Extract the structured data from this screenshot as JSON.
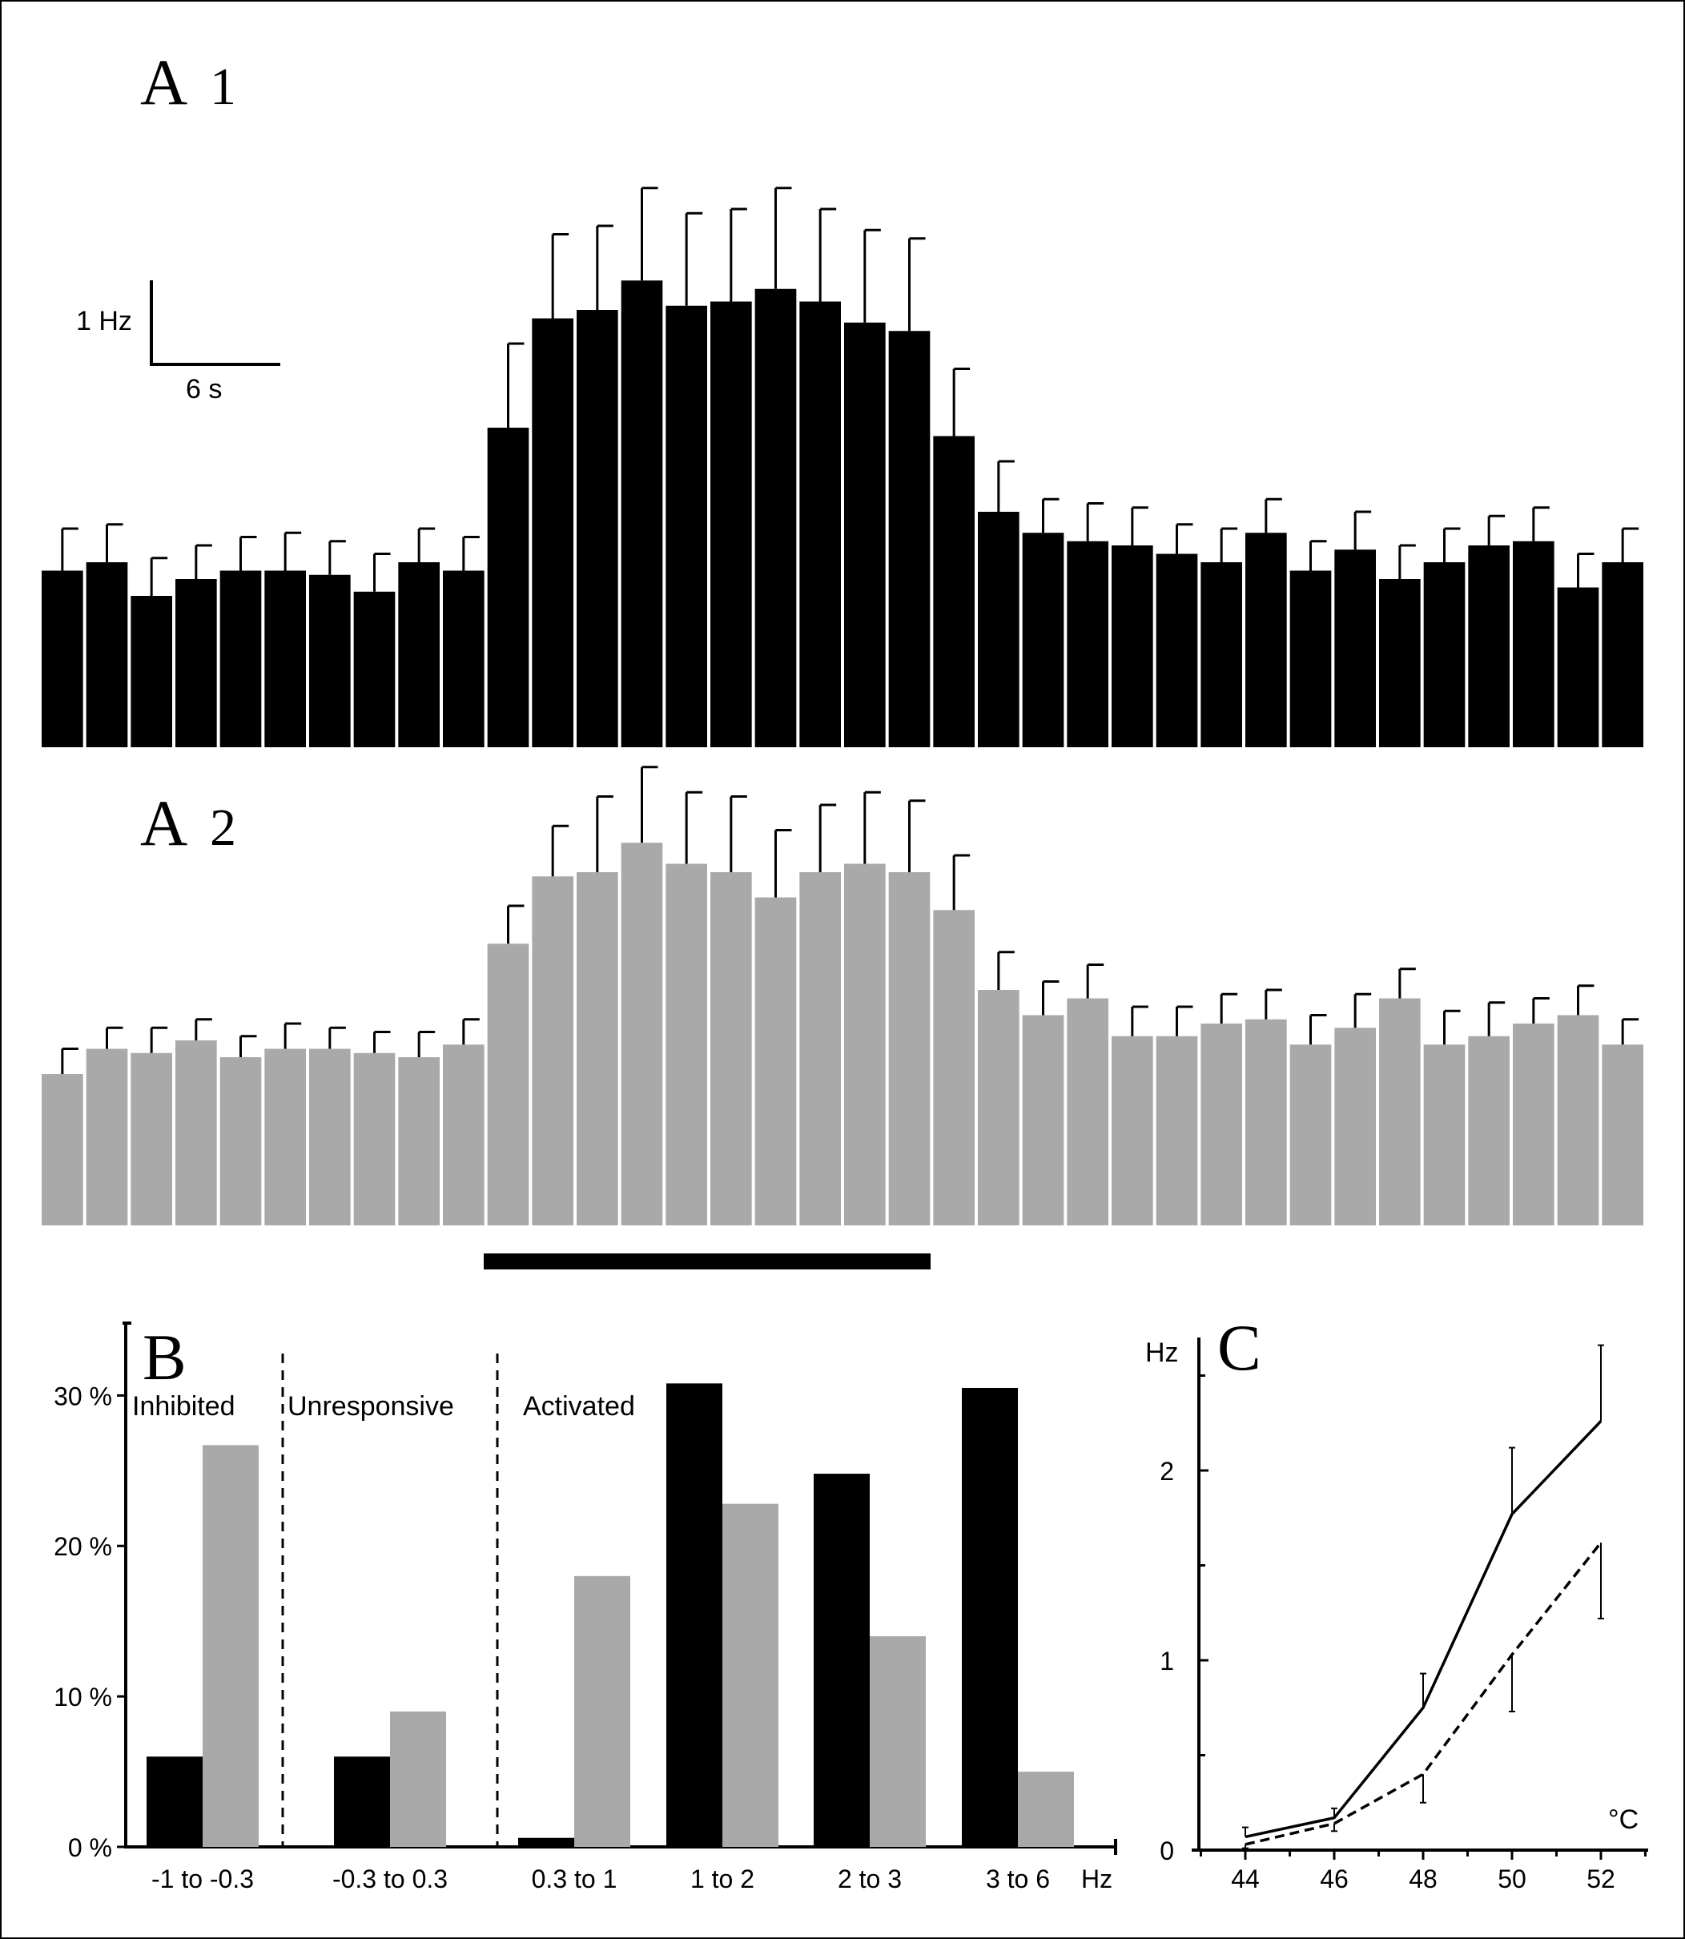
{
  "panels": {
    "a1": {
      "label": "A",
      "sub": "1"
    },
    "a2": {
      "label": "A",
      "sub": "2"
    },
    "b": {
      "label": "B"
    },
    "c": {
      "label": "C"
    }
  },
  "scale_bar": {
    "y_label": "1 Hz",
    "x_label": "6 s"
  },
  "colors": {
    "black": "#000000",
    "gray": "#a9a9a9"
  },
  "chart_data": [
    {
      "type": "bar",
      "panel": "A1",
      "bins": 36,
      "stimulus_bins": [
        10,
        19
      ],
      "values": [
        2.1,
        2.2,
        1.8,
        2.0,
        2.1,
        2.1,
        2.05,
        1.85,
        2.2,
        2.1,
        3.8,
        5.1,
        5.2,
        5.55,
        5.25,
        5.3,
        5.45,
        5.3,
        5.05,
        4.95,
        3.7,
        2.8,
        2.55,
        2.45,
        2.4,
        2.3,
        2.2,
        2.55,
        2.1,
        2.35,
        2.0,
        2.2,
        2.4,
        2.45,
        1.9,
        2.2
      ],
      "errors": [
        0.5,
        0.45,
        0.45,
        0.4,
        0.4,
        0.45,
        0.4,
        0.45,
        0.4,
        0.4,
        1.0,
        1.0,
        1.0,
        1.1,
        1.1,
        1.1,
        1.2,
        1.1,
        1.1,
        1.1,
        0.8,
        0.6,
        0.4,
        0.45,
        0.45,
        0.35,
        0.4,
        0.4,
        0.35,
        0.45,
        0.4,
        0.4,
        0.35,
        0.4,
        0.4,
        0.4
      ]
    },
    {
      "type": "bar",
      "panel": "A2",
      "bins": 36,
      "values": [
        1.8,
        2.1,
        2.05,
        2.2,
        2.0,
        2.1,
        2.1,
        2.05,
        2.0,
        2.15,
        3.35,
        4.15,
        4.2,
        4.55,
        4.3,
        4.2,
        3.9,
        4.2,
        4.3,
        4.2,
        3.75,
        2.8,
        2.5,
        2.7,
        2.25,
        2.25,
        2.4,
        2.45,
        2.15,
        2.35,
        2.7,
        2.15,
        2.25,
        2.4,
        2.5,
        2.15
      ],
      "errors": [
        0.3,
        0.25,
        0.3,
        0.25,
        0.25,
        0.3,
        0.25,
        0.25,
        0.3,
        0.3,
        0.45,
        0.6,
        0.9,
        0.9,
        0.85,
        0.9,
        0.8,
        0.8,
        0.85,
        0.85,
        0.65,
        0.45,
        0.4,
        0.4,
        0.35,
        0.35,
        0.35,
        0.35,
        0.35,
        0.4,
        0.35,
        0.4,
        0.4,
        0.3,
        0.35,
        0.3
      ]
    },
    {
      "type": "bar",
      "panel": "B",
      "categories": [
        "-1 to -0.3",
        "-0.3 to 0.3",
        "0.3 to 1",
        "1 to 2",
        "2 to 3",
        "3 to 6"
      ],
      "x_unit": "Hz",
      "y_ticks": [
        "0 %",
        "10 %",
        "20 %",
        "30 %"
      ],
      "ylim": [
        0,
        33
      ],
      "groups": [
        "Inhibited",
        "Unresponsive",
        "Activated"
      ],
      "series": [
        {
          "color": "#000000",
          "values": [
            6,
            6,
            0.6,
            30.8,
            24.8,
            30.5
          ]
        },
        {
          "color": "#a9a9a9",
          "values": [
            26.7,
            9,
            18,
            22.8,
            14,
            5
          ]
        }
      ]
    },
    {
      "type": "line",
      "panel": "C",
      "ylabel": "Hz",
      "xlabel": "°C",
      "x": [
        44,
        46,
        48,
        50,
        52
      ],
      "x_ticks": [
        "44",
        "46",
        "48",
        "50",
        "52"
      ],
      "y_ticks": [
        "0",
        "1",
        "2"
      ],
      "ylim": [
        0,
        2.6
      ],
      "series": [
        {
          "style": "solid",
          "values": [
            0.07,
            0.17,
            0.75,
            1.77,
            2.26
          ],
          "errors": [
            0.05,
            0.05,
            0.18,
            0.35,
            0.4
          ]
        },
        {
          "style": "dashed",
          "values": [
            0.03,
            0.14,
            0.4,
            1.03,
            1.62
          ],
          "errors": [
            0.02,
            0.04,
            0.15,
            0.3,
            0.4
          ]
        }
      ]
    }
  ]
}
